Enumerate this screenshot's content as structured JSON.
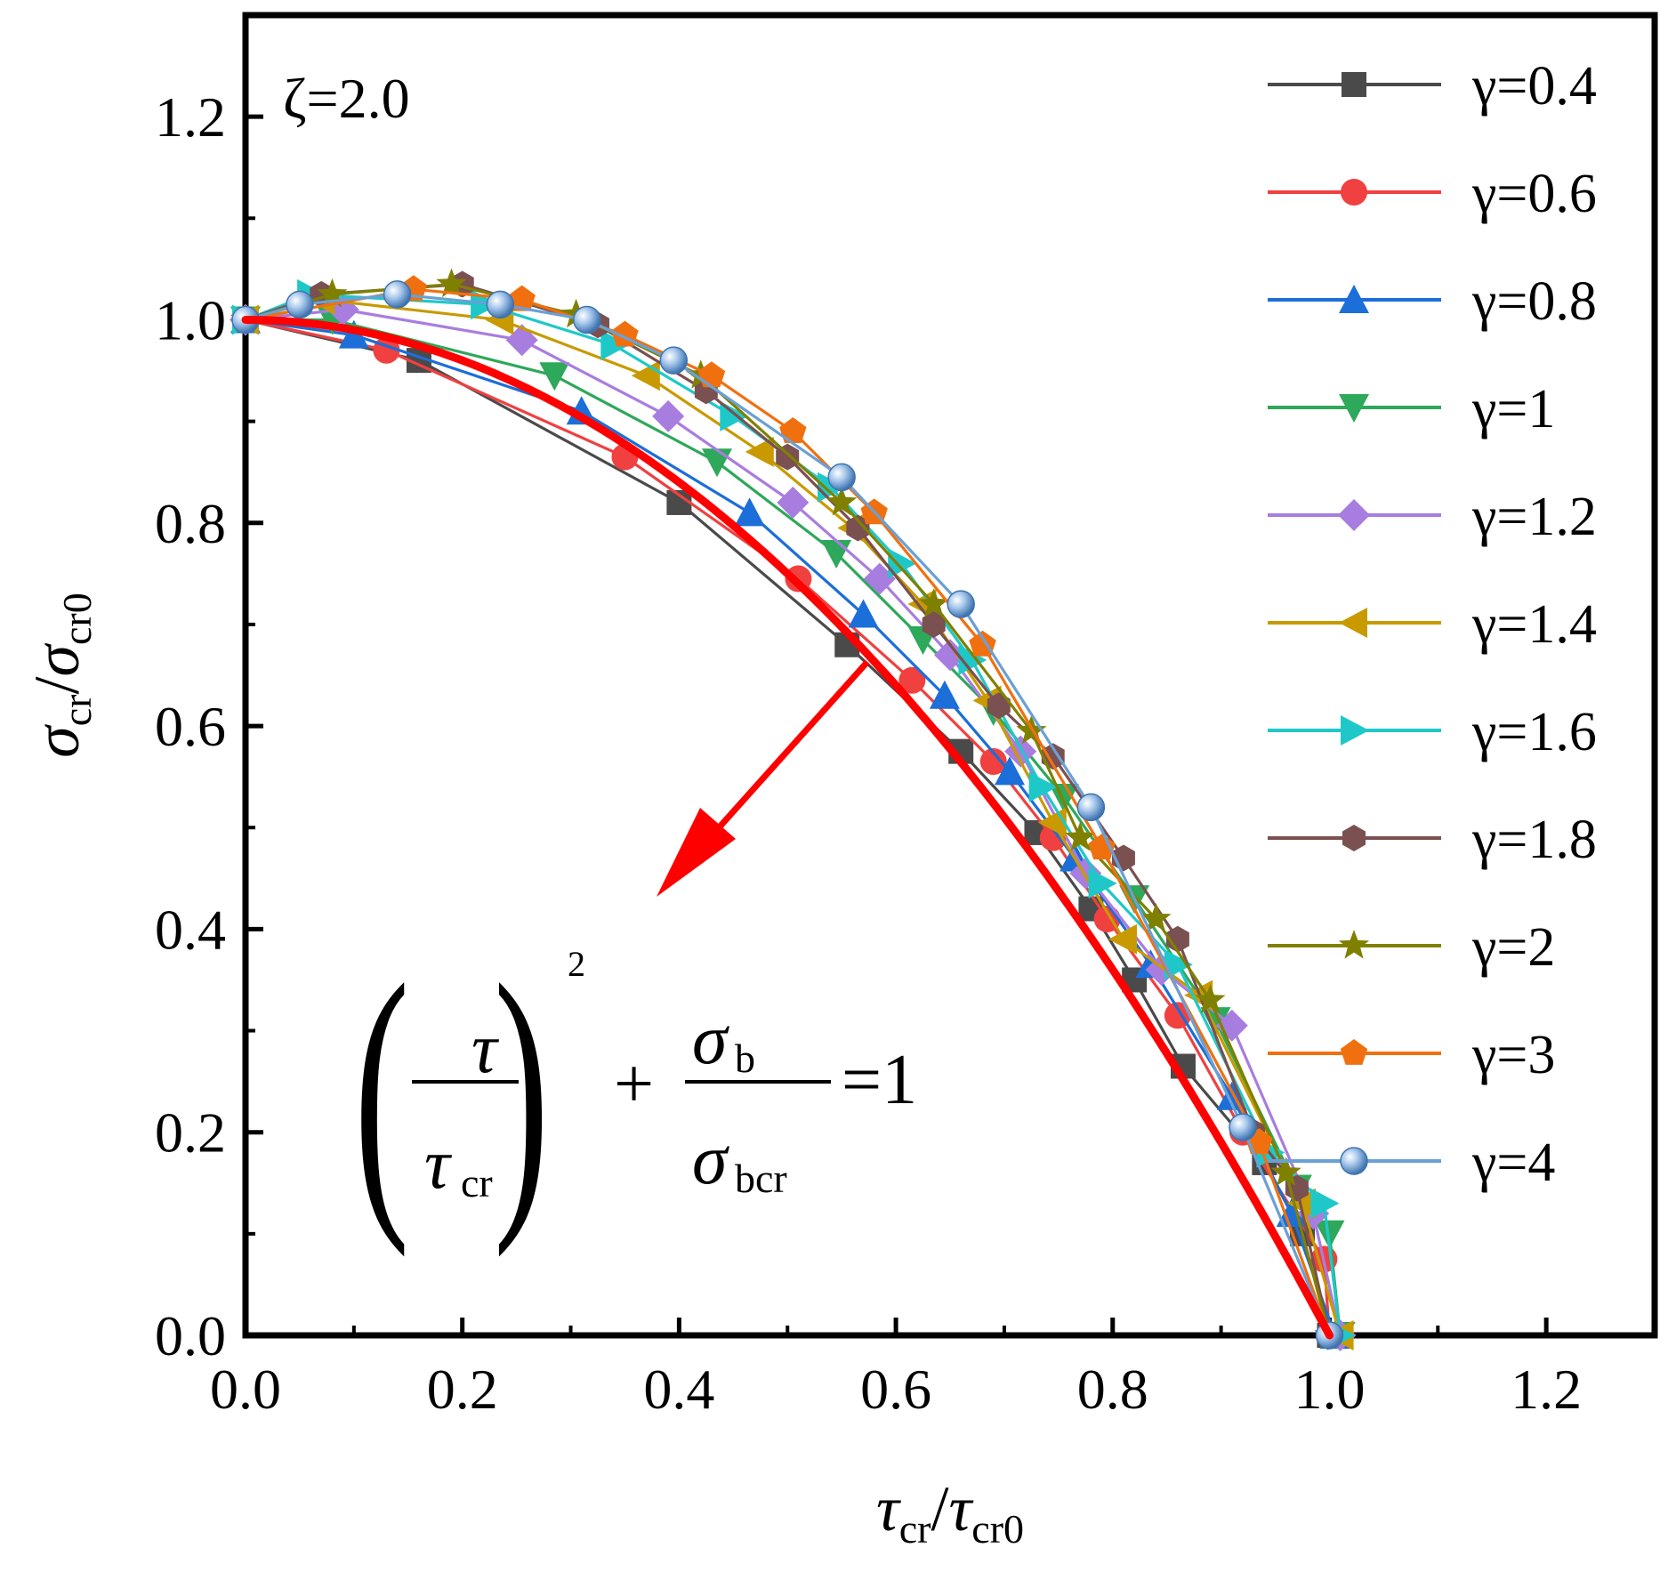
{
  "chart_data": {
    "type": "line",
    "annotation": "ζ=2.0",
    "xlabel": {
      "main": "τ",
      "sub": "cr",
      "sep": "/",
      "main2": "τ",
      "sub2": "cr0"
    },
    "ylabel": {
      "main": "σ",
      "sub": "cr",
      "sep": "/",
      "main2": "σ",
      "sub2": "cr0"
    },
    "xlim": [
      0.0,
      1.3
    ],
    "ylim": [
      0.0,
      1.3
    ],
    "xticks": [
      "0.0",
      "0.2",
      "0.4",
      "0.6",
      "0.8",
      "1.0",
      "1.2"
    ],
    "yticks": [
      "0.0",
      "0.2",
      "0.4",
      "0.6",
      "0.8",
      "1.0",
      "1.2"
    ],
    "legend_position": "top-right",
    "formula": {
      "num": "τ",
      "den": "τ",
      "den_sub": "cr",
      "power": "2",
      "plus": "+",
      "num2": "σ",
      "num2_sub": "b",
      "den2": "σ",
      "den2_sub": "bcr",
      "rhs": "=1"
    },
    "interaction_curve": {
      "color": "#ff0000",
      "equation": "(τ/τcr)^2 + σb/σbcr = 1"
    },
    "series": [
      {
        "name": "γ=0.4",
        "color": "#4a4a4a",
        "marker": "square",
        "x": [
          0,
          0.16,
          0.4,
          0.555,
          0.66,
          0.73,
          0.78,
          0.82,
          0.865,
          0.94,
          0.975,
          1.0
        ],
        "y": [
          1.0,
          0.96,
          0.82,
          0.68,
          0.575,
          0.495,
          0.42,
          0.35,
          0.265,
          0.17,
          0.1,
          0.0
        ]
      },
      {
        "name": "γ=0.6",
        "color": "#f04040",
        "marker": "circle",
        "x": [
          0,
          0.13,
          0.35,
          0.51,
          0.615,
          0.69,
          0.745,
          0.795,
          0.86,
          0.92,
          0.995,
          1.0
        ],
        "y": [
          1.0,
          0.97,
          0.865,
          0.745,
          0.645,
          0.565,
          0.49,
          0.41,
          0.315,
          0.2,
          0.075,
          0.0
        ]
      },
      {
        "name": "γ=0.8",
        "color": "#1c6ed8",
        "marker": "triangle-up",
        "x": [
          0,
          0.1,
          0.31,
          0.465,
          0.57,
          0.645,
          0.705,
          0.765,
          0.835,
          0.91,
          0.965,
          1.005
        ],
        "y": [
          1.0,
          0.985,
          0.91,
          0.81,
          0.71,
          0.63,
          0.555,
          0.47,
          0.365,
          0.235,
          0.12,
          0.0
        ]
      },
      {
        "name": "γ=1",
        "color": "#2ea85a",
        "marker": "triangle-down",
        "x": [
          0,
          0.08,
          0.285,
          0.435,
          0.545,
          0.625,
          0.69,
          0.755,
          0.82,
          0.895,
          0.97,
          1.0,
          1.01
        ],
        "y": [
          1.0,
          1.0,
          0.945,
          0.86,
          0.77,
          0.685,
          0.615,
          0.53,
          0.43,
          0.31,
          0.145,
          0.1,
          0.0
        ]
      },
      {
        "name": "γ=1.2",
        "color": "#a87de0",
        "marker": "diamond",
        "x": [
          0,
          0.09,
          0.255,
          0.39,
          0.505,
          0.585,
          0.65,
          0.715,
          0.775,
          0.845,
          0.91,
          0.985,
          1.01
        ],
        "y": [
          1.0,
          1.01,
          0.98,
          0.905,
          0.82,
          0.745,
          0.67,
          0.575,
          0.455,
          0.36,
          0.305,
          0.12,
          0.0
        ]
      },
      {
        "name": "γ=1.4",
        "color": "#c89a00",
        "marker": "triangle-left",
        "x": [
          0,
          0.07,
          0.235,
          0.37,
          0.475,
          0.56,
          0.625,
          0.685,
          0.745,
          0.81,
          0.88,
          0.975,
          1.01
        ],
        "y": [
          1.0,
          1.02,
          1.0,
          0.945,
          0.87,
          0.795,
          0.72,
          0.625,
          0.505,
          0.39,
          0.335,
          0.13,
          0.0
        ]
      },
      {
        "name": "γ=1.6",
        "color": "#1fc8c8",
        "marker": "triangle-right",
        "x": [
          0,
          0.06,
          0.22,
          0.34,
          0.45,
          0.54,
          0.605,
          0.67,
          0.735,
          0.79,
          0.86,
          0.945,
          0.995,
          1.01
        ],
        "y": [
          1.0,
          1.025,
          1.015,
          0.975,
          0.905,
          0.835,
          0.76,
          0.665,
          0.54,
          0.445,
          0.365,
          0.18,
          0.13,
          0.0
        ]
      },
      {
        "name": "γ=1.8",
        "color": "#7a5050",
        "marker": "hexagon",
        "x": [
          0,
          0.07,
          0.2,
          0.325,
          0.425,
          0.5,
          0.565,
          0.635,
          0.695,
          0.745,
          0.81,
          0.86,
          0.93,
          0.97,
          1.0
        ],
        "y": [
          1.0,
          1.025,
          1.035,
          0.995,
          0.93,
          0.865,
          0.795,
          0.7,
          0.62,
          0.57,
          0.47,
          0.39,
          0.2,
          0.145,
          0.0
        ]
      },
      {
        "name": "γ=2",
        "color": "#808000",
        "marker": "star",
        "x": [
          0,
          0.08,
          0.19,
          0.305,
          0.42,
          0.55,
          0.635,
          0.725,
          0.77,
          0.84,
          0.89,
          0.96,
          1.0
        ],
        "y": [
          1.0,
          1.025,
          1.035,
          1.005,
          0.945,
          0.82,
          0.72,
          0.595,
          0.49,
          0.41,
          0.33,
          0.16,
          0.0
        ]
      },
      {
        "name": "γ=3",
        "color": "#f07010",
        "marker": "pentagon",
        "x": [
          0,
          0.155,
          0.255,
          0.35,
          0.43,
          0.505,
          0.58,
          0.68,
          0.79,
          0.935,
          1.0
        ],
        "y": [
          1.0,
          1.03,
          1.02,
          0.985,
          0.945,
          0.89,
          0.81,
          0.68,
          0.48,
          0.19,
          0.0
        ]
      },
      {
        "name": "γ=4",
        "color": "#6aa0d6",
        "marker": "sphere",
        "x": [
          0,
          0.05,
          0.14,
          0.235,
          0.315,
          0.395,
          0.55,
          0.66,
          0.78,
          0.92,
          1.0
        ],
        "y": [
          1.0,
          1.015,
          1.025,
          1.015,
          1.0,
          0.96,
          0.845,
          0.72,
          0.52,
          0.205,
          0.0
        ]
      }
    ]
  }
}
